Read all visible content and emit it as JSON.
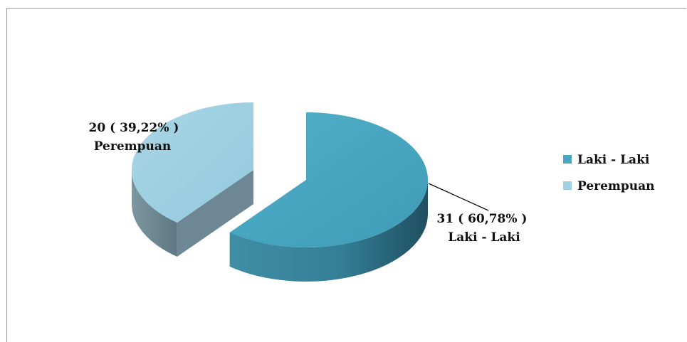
{
  "chart_data": {
    "type": "pie",
    "title": "",
    "categories": [
      "Laki - Laki",
      "Perempuan"
    ],
    "values": [
      31,
      20
    ],
    "data_labels": [
      {
        "value_text": "31 ( 60,78% )",
        "name_text": "Laki - Laki"
      },
      {
        "value_text": "20 ( 39,22% )",
        "name_text": "Perempuan"
      }
    ],
    "legend": {
      "position": "right",
      "entries": [
        "Laki - Laki",
        "Perempuan"
      ]
    },
    "colors": {
      "Laki - Laki": "#4ba8c2",
      "Perempuan": "#9fd1e3"
    },
    "style": "3d-exploded-pie"
  }
}
